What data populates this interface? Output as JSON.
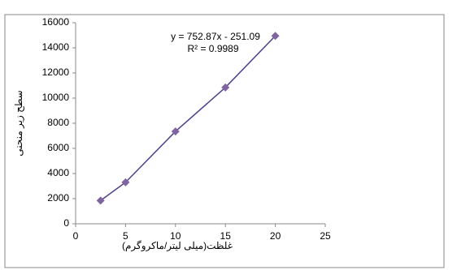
{
  "chart_data": {
    "type": "scatter",
    "x_label": "غلظت(میلی لیتر/ماکروگرم)",
    "y_label": "سطح زیر منحنی",
    "annotations": [
      "y = 752.87x - 251.09",
      "R² = 0.9989"
    ],
    "series": [
      {
        "color": "#8064a2",
        "line_color": "#4b3f8f",
        "x": [
          2.5,
          5,
          10,
          15,
          20
        ],
        "values": [
          1850,
          3300,
          7350,
          10850,
          14950
        ]
      }
    ],
    "xlim": [
      0,
      25
    ],
    "xticks": [
      0,
      5,
      10,
      15,
      20,
      25
    ],
    "ylim": [
      0,
      16000
    ],
    "yticks": [
      0,
      2000,
      4000,
      6000,
      8000,
      10000,
      12000,
      14000,
      16000
    ],
    "grid": false
  }
}
